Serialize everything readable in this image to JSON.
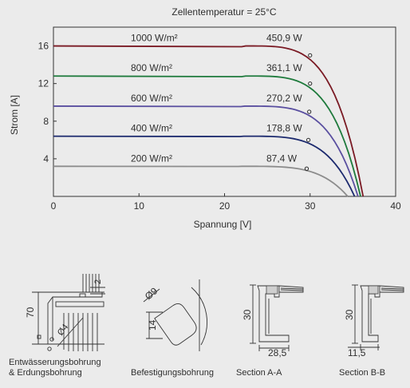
{
  "chart_data": {
    "type": "line",
    "title": "Zellentemperatur = 25°C",
    "xlabel": "Spannung [V]",
    "ylabel": "Strom [A]",
    "xlim": [
      0,
      40
    ],
    "ylim": [
      0,
      18
    ],
    "xticks": [
      0,
      10,
      20,
      30,
      40
    ],
    "yticks": [
      4,
      8,
      12,
      16
    ],
    "grid": false,
    "series": [
      {
        "name": "1000 W/m²",
        "power_label": "450,9 W",
        "color": "#7a1a24",
        "isc": 16.0,
        "voc": 36.2,
        "mpp": [
          30.0,
          15.0
        ]
      },
      {
        "name": "800 W/m²",
        "power_label": "361,1 W",
        "color": "#1e7a3c",
        "isc": 12.8,
        "voc": 35.9,
        "mpp": [
          30.0,
          12.0
        ]
      },
      {
        "name": "600 W/m²",
        "power_label": "270,2 W",
        "color": "#5a4fa0",
        "isc": 9.6,
        "voc": 35.6,
        "mpp": [
          29.9,
          9.0
        ]
      },
      {
        "name": "400 W/m²",
        "power_label": "178,8 W",
        "color": "#1c2a6e",
        "isc": 6.4,
        "voc": 35.2,
        "mpp": [
          29.8,
          6.0
        ]
      },
      {
        "name": "200 W/m²",
        "power_label": "87,4 W",
        "color": "#8c8c8c",
        "isc": 3.2,
        "voc": 34.4,
        "mpp": [
          29.6,
          2.95
        ]
      }
    ]
  },
  "drawings": {
    "dim_2": "2",
    "dim_70": "70",
    "dim_phi4": "Ø4",
    "dim_phi9": "Ø9",
    "dim_14": "14",
    "dim_30a": "30",
    "dim_28_5": "28,5",
    "dim_30b": "30",
    "dim_11_5": "11,5",
    "caption_drain_1": "Entwässerungsbohrung",
    "caption_drain_2": "& Erdungsbohrung",
    "caption_mount": "Befestigungsbohrung",
    "caption_a": "Section A-A",
    "caption_b": "Section B-B"
  }
}
